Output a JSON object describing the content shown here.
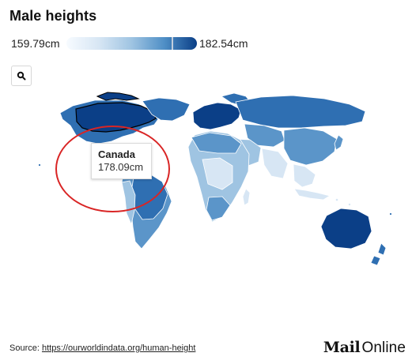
{
  "title": "Male heights",
  "legend": {
    "min_label": "159.79cm",
    "max_label": "182.54cm",
    "min_value": 159.79,
    "max_value": 182.54,
    "gradient_colors": [
      "#f7fbff",
      "#d7e6f4",
      "#9fc4e2",
      "#4f8fc6",
      "#0b3f87"
    ],
    "marker_value": 178.09
  },
  "controls": {
    "zoom_icon": "search-icon"
  },
  "map": {
    "selected_country": "Canada",
    "selected_value": "178.09cm",
    "colors": {
      "dark": "#0b3f87",
      "medium_dark": "#2f6fb2",
      "medium": "#5b95c9",
      "light": "#9fc4e2",
      "pale": "#d7e6f4"
    }
  },
  "annotation": {
    "ring_color": "#d92525"
  },
  "footer": {
    "source_prefix": "Source: ",
    "source_link": "https://ourworldindata.org/human-height",
    "logo_mail": "Mail",
    "logo_online": "Online"
  }
}
